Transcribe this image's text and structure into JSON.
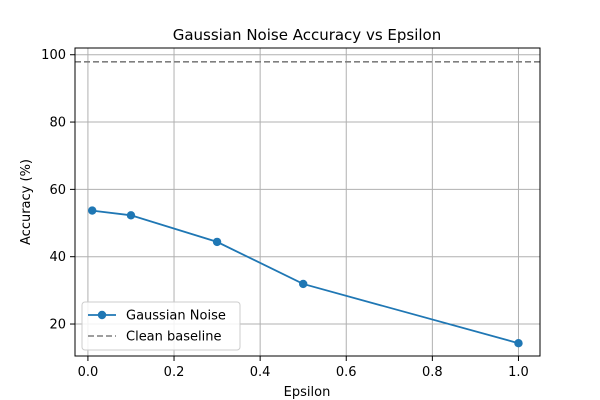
{
  "chart_data": {
    "type": "line",
    "title": "Gaussian Noise Accuracy vs Epsilon",
    "xlabel": "Epsilon",
    "ylabel": "Accuracy (%)",
    "xlim": [
      -0.03,
      1.05
    ],
    "ylim": [
      10.5,
      102
    ],
    "xticks": [
      0.0,
      0.2,
      0.4,
      0.6,
      0.8,
      1.0
    ],
    "xtick_labels": [
      "0.0",
      "0.2",
      "0.4",
      "0.6",
      "0.8",
      "1.0"
    ],
    "yticks": [
      20,
      40,
      60,
      80,
      100
    ],
    "ytick_labels": [
      "20",
      "40",
      "60",
      "80",
      "100"
    ],
    "grid": true,
    "legend_position": "lower-left",
    "series": [
      {
        "name": "Gaussian Noise",
        "style": "line-with-markers",
        "color": "#1f77b4",
        "x": [
          0.01,
          0.1,
          0.3,
          0.5,
          1.0
        ],
        "y": [
          53.7,
          52.3,
          44.4,
          31.9,
          14.3
        ]
      }
    ],
    "reference_lines": [
      {
        "name": "Clean baseline",
        "orientation": "horizontal",
        "style": "dashed",
        "color": "#7f7f7f",
        "y": 97.9
      }
    ]
  }
}
